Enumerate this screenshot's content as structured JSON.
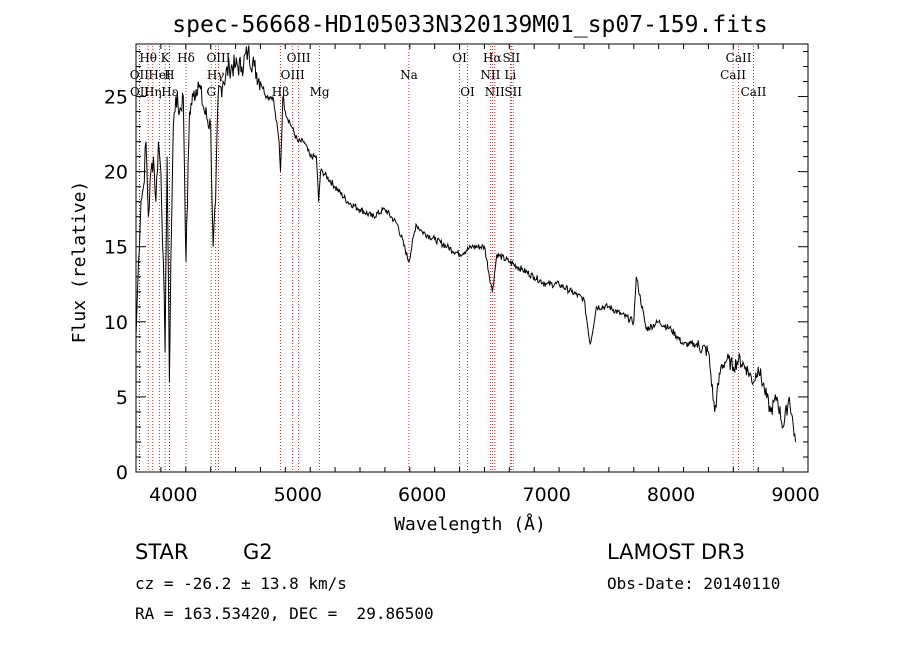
{
  "chart_data": {
    "type": "line",
    "title": "spec-56668-HD105033N320139M01_sp07-159.fits",
    "xlabel": "Wavelength (Å)",
    "ylabel": "Flux (relative)",
    "xlim": [
      3700,
      9100
    ],
    "ylim": [
      0,
      28.5
    ],
    "xticks": [
      4000,
      5000,
      6000,
      7000,
      8000,
      9000
    ],
    "yticks": [
      0,
      5,
      10,
      15,
      20,
      25
    ],
    "series": [
      {
        "name": "spectrum",
        "x": [
          3700,
          3720,
          3740,
          3760,
          3780,
          3800,
          3820,
          3840,
          3860,
          3880,
          3900,
          3920,
          3934,
          3950,
          3968,
          3980,
          4000,
          4020,
          4050,
          4080,
          4102,
          4130,
          4160,
          4200,
          4250,
          4300,
          4320,
          4340,
          4360,
          4400,
          4450,
          4500,
          4550,
          4600,
          4650,
          4700,
          4750,
          4800,
          4850,
          4861,
          4880,
          4900,
          4950,
          5000,
          5050,
          5100,
          5150,
          5167,
          5183,
          5200,
          5300,
          5400,
          5500,
          5600,
          5700,
          5800,
          5893,
          5950,
          6000,
          6100,
          6200,
          6300,
          6400,
          6500,
          6563,
          6600,
          6700,
          6800,
          6900,
          7000,
          7100,
          7200,
          7300,
          7350,
          7400,
          7500,
          7600,
          7700,
          7720,
          7800,
          7900,
          8000,
          8100,
          8200,
          8300,
          8350,
          8400,
          8450,
          8500,
          8542,
          8600,
          8662,
          8700,
          8750,
          8800,
          8850,
          8900,
          8950,
          9000
        ],
        "y": [
          9,
          14,
          18,
          19,
          22,
          17,
          20,
          21,
          18,
          22,
          20,
          14,
          8,
          21,
          6,
          14,
          23,
          25,
          24,
          25,
          14,
          24,
          25,
          26,
          24,
          23,
          15,
          18,
          25,
          26,
          27,
          27,
          27,
          28,
          27,
          26,
          25,
          25,
          22,
          20,
          25,
          24,
          23,
          22,
          22,
          21,
          21,
          18,
          20,
          20,
          19,
          18,
          17.5,
          17,
          17.5,
          16.5,
          14,
          16.5,
          16,
          15.5,
          15,
          14.5,
          15,
          15,
          12,
          14.5,
          14,
          13.5,
          13,
          12.5,
          12.5,
          12,
          11.5,
          8.5,
          11,
          11,
          10.5,
          10,
          13,
          9.5,
          10,
          9.5,
          8.5,
          8.5,
          8,
          4,
          7,
          7.5,
          7,
          7.5,
          7,
          6,
          7,
          5.5,
          4,
          5,
          3,
          5,
          2
        ]
      }
    ],
    "line_markers": [
      {
        "label": "Hθ",
        "wl": 3798,
        "row": 0
      },
      {
        "label": "OII",
        "wl": 3727,
        "row": 1
      },
      {
        "label": "OII",
        "wl": 3729,
        "row": 2
      },
      {
        "label": "Hη",
        "wl": 3835,
        "row": 2
      },
      {
        "label": "HeI",
        "wl": 3889,
        "row": 1
      },
      {
        "label": "K",
        "wl": 3934,
        "row": 0
      },
      {
        "label": "H",
        "wl": 3968,
        "row": 1
      },
      {
        "label": "Hε",
        "wl": 3970,
        "row": 2
      },
      {
        "label": "Hδ",
        "wl": 4102,
        "row": 0
      },
      {
        "label": "OIII",
        "wl": 4363,
        "row": 0
      },
      {
        "label": "Hγ",
        "wl": 4340,
        "row": 1
      },
      {
        "label": "G",
        "wl": 4304,
        "row": 2
      },
      {
        "label": "Hβ",
        "wl": 4861,
        "row": 2
      },
      {
        "label": "OIII",
        "wl": 5007,
        "row": 0
      },
      {
        "label": "OIII",
        "wl": 4959,
        "row": 1
      },
      {
        "label": "Mg",
        "wl": 5175,
        "row": 2
      },
      {
        "label": "Na",
        "wl": 5893,
        "row": 1
      },
      {
        "label": "OI",
        "wl": 6300,
        "row": 0
      },
      {
        "label": "OI",
        "wl": 6364,
        "row": 2
      },
      {
        "label": "Hα",
        "wl": 6563,
        "row": 0
      },
      {
        "label": "NII",
        "wl": 6548,
        "row": 1
      },
      {
        "label": "NII",
        "wl": 6583,
        "row": 2
      },
      {
        "label": "SII",
        "wl": 6716,
        "row": 0
      },
      {
        "label": "Li",
        "wl": 6708,
        "row": 1
      },
      {
        "label": "SII",
        "wl": 6731,
        "row": 2
      },
      {
        "label": "CaII",
        "wl": 8542,
        "row": 0
      },
      {
        "label": "CaII",
        "wl": 8498,
        "row": 1
      },
      {
        "label": "CaII",
        "wl": 8662,
        "row": 2
      }
    ]
  },
  "info": {
    "object_class": "STAR",
    "subclass": "G2",
    "survey": "LAMOST DR3",
    "cz": "cz = -26.2 ± 13.8 km/s",
    "obs_date": "Obs-Date: 20140110",
    "coords": "RA = 163.53420, DEC =  29.86500"
  }
}
